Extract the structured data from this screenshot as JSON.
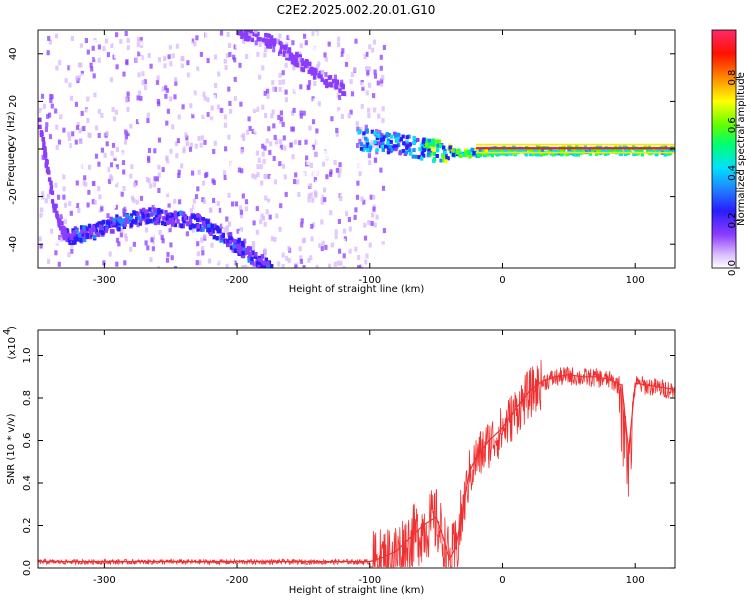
{
  "title": "C2E2.2025.002.20.01.G10",
  "chart_data": [
    {
      "type": "heatmap",
      "xlabel": "Height of straight line (km)",
      "ylabel": "Frequency (Hz)",
      "xlim": [
        -350,
        130
      ],
      "ylim": [
        -50,
        50
      ],
      "xticks": [
        -300,
        -200,
        -100,
        0,
        100
      ],
      "yticks": [
        -40,
        -20,
        0,
        20,
        40
      ],
      "grid": false,
      "colorbar": {
        "label": "Normalized spectral amplitude",
        "ticks": [
          "0.0",
          "0.2",
          "0.4",
          "0.6",
          "0.8"
        ],
        "range": [
          0,
          1
        ]
      },
      "features": {
        "lower_arc": {
          "x": [
            -330,
            -310,
            -290,
            -270,
            -250,
            -230,
            -210,
            -190,
            -175
          ],
          "y": [
            -36,
            -34,
            -30,
            -27,
            -28,
            -30,
            -36,
            -44,
            -50
          ]
        },
        "upper_arc": {
          "x": [
            -200,
            -180,
            -165,
            -150,
            -135,
            -120
          ],
          "y": [
            50,
            47,
            42,
            36,
            30,
            26
          ]
        },
        "left_edge_trace": {
          "x": [
            -350,
            -345,
            -340,
            -335,
            -330
          ],
          "y": [
            12,
            -4,
            -20,
            -30,
            -36
          ]
        },
        "carrier_line": {
          "x": [
            -110,
            -80,
            -50,
            -30,
            0,
            50,
            100,
            130
          ],
          "y": [
            5,
            3,
            0,
            -1,
            0,
            0,
            0,
            0
          ]
        },
        "noise_x_extent": [
          -350,
          -90
        ]
      }
    },
    {
      "type": "line",
      "xlabel": "Height of straight line (km)",
      "ylabel": "SNR (10 * v/v)",
      "yscale_label": "(x10",
      "yscale_exp": "4",
      "xlim": [
        -350,
        130
      ],
      "ylim": [
        0,
        1.12
      ],
      "xticks": [
        -300,
        -200,
        -100,
        0,
        100
      ],
      "yticks": [
        "0.0",
        "0.2",
        "0.4",
        "0.6",
        "0.8",
        "1.0"
      ],
      "series": [
        {
          "color": "#f03030",
          "x": [
            -350,
            -300,
            -250,
            -200,
            -150,
            -100,
            -90,
            -80,
            -70,
            -60,
            -50,
            -45,
            -40,
            -35,
            -30,
            -25,
            -20,
            -10,
            0,
            10,
            20,
            30,
            40,
            50,
            60,
            70,
            80,
            90,
            95,
            100,
            110,
            120,
            130
          ],
          "y": [
            0.03,
            0.03,
            0.03,
            0.03,
            0.03,
            0.03,
            0.05,
            0.08,
            0.14,
            0.2,
            0.24,
            0.15,
            0.04,
            0.1,
            0.28,
            0.45,
            0.52,
            0.6,
            0.66,
            0.75,
            0.83,
            0.88,
            0.9,
            0.91,
            0.9,
            0.9,
            0.89,
            0.86,
            0.55,
            0.87,
            0.86,
            0.85,
            0.84
          ]
        }
      ]
    }
  ]
}
